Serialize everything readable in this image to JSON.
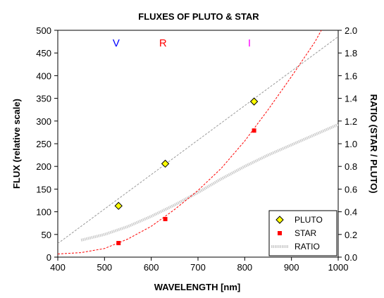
{
  "chart_data": {
    "type": "scatter",
    "title": "FLUXES OF PLUTO & STAR",
    "xlabel": "WAVELENGTH [nm]",
    "ylabel": "FLUX (relative scale)",
    "y2label": "RATIO (STAR / PLUTO)",
    "xlim": [
      400,
      1000
    ],
    "ylim": [
      0,
      500
    ],
    "y2lim": [
      0,
      2.0
    ],
    "x_ticks": [
      "400",
      "500",
      "600",
      "700",
      "800",
      "900",
      "1000"
    ],
    "y_ticks": [
      "0",
      "50",
      "100",
      "150",
      "200",
      "250",
      "300",
      "350",
      "400",
      "450",
      "500"
    ],
    "y2_ticks": [
      "0.0",
      "0.2",
      "0.4",
      "0.6",
      "0.8",
      "1.0",
      "1.2",
      "1.4",
      "1.6",
      "1.8",
      "2.0"
    ],
    "grid": false,
    "legend_position": "bottom-right",
    "band_labels": [
      {
        "text": "V",
        "x": 525,
        "color": "#0000ff"
      },
      {
        "text": "R",
        "x": 625,
        "color": "#ff0000"
      },
      {
        "text": "I",
        "x": 810,
        "color": "#ff00ff"
      }
    ],
    "series": [
      {
        "name": "PLUTO",
        "marker": "diamond",
        "color": "#ffff00",
        "x": [
          530,
          630,
          820
        ],
        "y": [
          113,
          206,
          343
        ],
        "trend_color": "#999999",
        "trend": {
          "x": [
            400,
            1000
          ],
          "y": [
            30,
            486
          ]
        }
      },
      {
        "name": "STAR",
        "marker": "square",
        "color": "#ff0000",
        "x": [
          530,
          630,
          820
        ],
        "y": [
          31,
          84,
          279
        ],
        "trend_color": "#ff0000",
        "trend": {
          "x": [
            400,
            450,
            500,
            550,
            600,
            650,
            700,
            750,
            800,
            850,
            900,
            950,
            965
          ],
          "y": [
            7,
            10,
            19,
            40,
            68,
            105,
            147,
            196,
            256,
            325,
            398,
            474,
            502
          ]
        }
      },
      {
        "name": "RATIO",
        "marker": "line",
        "axis": "y2",
        "color": "#cccccc",
        "x": [
          450,
          500,
          550,
          600,
          650,
          700,
          750,
          800,
          850,
          900,
          950,
          1000
        ],
        "y": [
          0.15,
          0.2,
          0.27,
          0.36,
          0.46,
          0.57,
          0.69,
          0.8,
          0.9,
          0.99,
          1.08,
          1.17
        ]
      }
    ]
  }
}
